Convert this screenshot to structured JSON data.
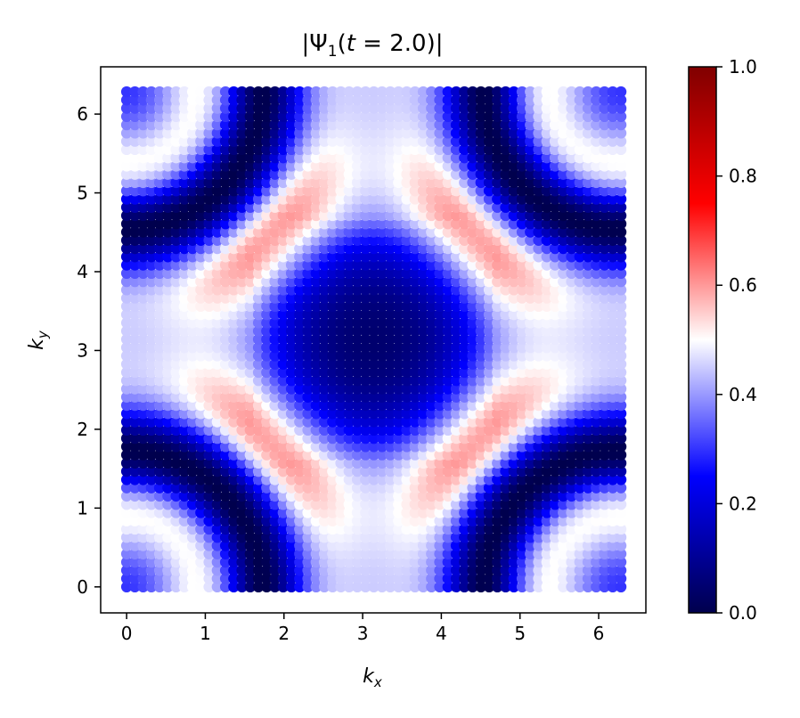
{
  "chart_data": {
    "type": "heatmap",
    "title_parts": {
      "open": "|Ψ",
      "sub": "1",
      "mid": "(",
      "t": "t",
      "rest": " = 2.0)|"
    },
    "xlabel": {
      "base": "k",
      "sub": "x"
    },
    "ylabel": {
      "base": "k",
      "sub": "y"
    },
    "xlim": [
      -0.33,
      6.6
    ],
    "ylim": [
      -0.33,
      6.6
    ],
    "x_ticks": [
      "0",
      "1",
      "2",
      "3",
      "4",
      "5",
      "6"
    ],
    "y_ticks": [
      "0",
      "1",
      "2",
      "3",
      "4",
      "5",
      "6"
    ],
    "grid": {
      "x_start": 0,
      "x_end": 6.2832,
      "y_start": 0,
      "y_end": 6.2832,
      "n": 61
    },
    "colorbar": {
      "range": [
        0.0,
        1.0
      ],
      "ticks": [
        "0.0",
        "0.2",
        "0.4",
        "0.6",
        "0.8",
        "1.0"
      ],
      "colormap": "seismic",
      "stops": [
        "#00004d",
        "#0000ff",
        "#ffffff",
        "#ff0000",
        "#800000"
      ]
    }
  }
}
